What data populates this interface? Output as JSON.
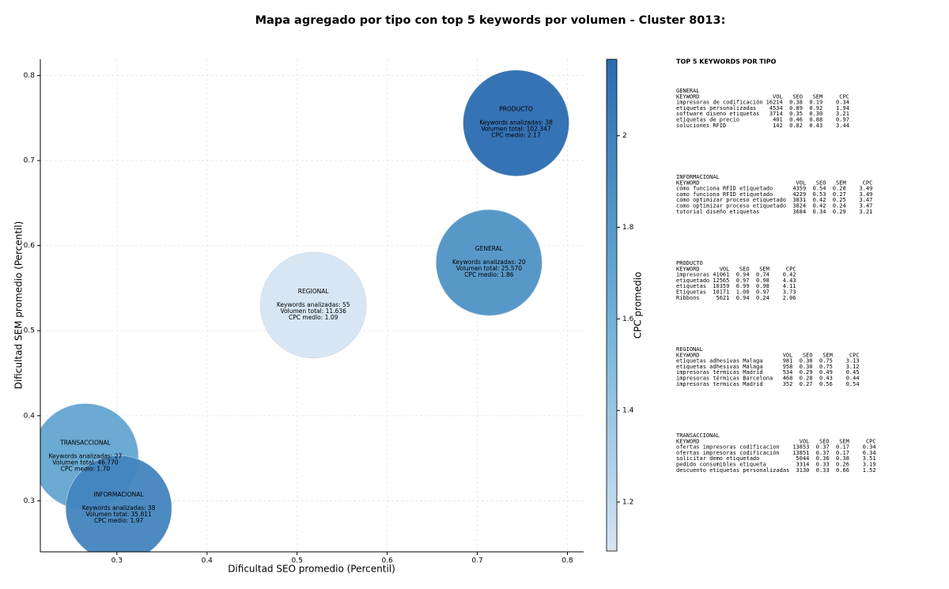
{
  "chart_data": {
    "type": "bubble",
    "title": "Mapa agregado por tipo con top 5 keywords por volumen - Cluster 8013:",
    "x_label": "Dificultad SEO promedio (Percentil)",
    "y_label": "Dificultad SEM promedio (Percentil)",
    "colorbar_label": "CPC promedio",
    "xlim": [
      0.215,
      0.818
    ],
    "ylim": [
      0.24,
      0.819
    ],
    "xticks": [
      0.3,
      0.4,
      0.5,
      0.6,
      0.7,
      0.8
    ],
    "yticks": [
      0.3,
      0.4,
      0.5,
      0.6,
      0.7,
      0.8
    ],
    "clim": [
      1.093,
      2.167
    ],
    "cticks": [
      1.2,
      1.4,
      1.6,
      1.8,
      2.0
    ],
    "colormap": [
      "#d6e5f3",
      "#6aaed6",
      "#2b6cb0"
    ],
    "grid": true,
    "points": [
      {
        "name": "PRODUCTO",
        "x": 0.743,
        "y": 0.744,
        "cpc": 2.17,
        "lines": [
          "Keywords analizadas: 38",
          "Volumen total: 102.347",
          "CPC medio: 2.17"
        ]
      },
      {
        "name": "GENERAL",
        "x": 0.713,
        "y": 0.58,
        "cpc": 1.86,
        "lines": [
          "Keywords analizadas: 20",
          "Volumen total: 25.570",
          "CPC medio: 1.86"
        ]
      },
      {
        "name": "REGIONAL",
        "x": 0.518,
        "y": 0.53,
        "cpc": 1.09,
        "lines": [
          "Keywords analizadas: 55",
          "Volumen total: 11.636",
          "CPC medio: 1.09"
        ]
      },
      {
        "name": "TRANSACCIONAL",
        "x": 0.265,
        "y": 0.352,
        "cpc": 1.7,
        "lines": [
          "Keywords analizadas: 27",
          "Volumen total: 46.770",
          "CPC medio: 1.70"
        ]
      },
      {
        "name": "INFORMACIONAL",
        "x": 0.302,
        "y": 0.291,
        "cpc": 1.97,
        "lines": [
          "Keywords analizadas: 38",
          "Volumen total: 35.811",
          "CPC medio: 1.97"
        ]
      }
    ]
  },
  "panel": {
    "title": "TOP 5 KEYWORDS POR TIPO",
    "groups": [
      {
        "title": "GENERAL",
        "columns": [
          "KEYWORD",
          "VOL",
          "SEO",
          "SEM",
          "CPC"
        ],
        "rows": [
          [
            "impresoras de codificación",
            "16214",
            "0.38",
            "0.19",
            "0.34"
          ],
          [
            "etiquetas personalizadas",
            "4534",
            "0.89",
            "0.92",
            "1.94"
          ],
          [
            "software diseno etiquetas",
            "3714",
            "0.35",
            "0.30",
            "3.21"
          ],
          [
            "etiquetas de precio",
            "401",
            "0.46",
            "0.88",
            "0.97"
          ],
          [
            "soluciones RFID",
            "142",
            "0.82",
            "0.43",
            "3.44"
          ]
        ]
      },
      {
        "title": "INFORMACIONAL",
        "columns": [
          "KEYWORD",
          "VOL",
          "SEO",
          "SEM",
          "CPC"
        ],
        "rows": [
          [
            "cómo funciona RFID etiquetado",
            "4359",
            "0.54",
            "0.28",
            "3.49"
          ],
          [
            "como funciona RFID etiquetado",
            "4229",
            "0.53",
            "0.27",
            "3.49"
          ],
          [
            "cómo optimizar proceso etiquetado",
            "3831",
            "0.42",
            "0.25",
            "3.47"
          ],
          [
            "como optimizar proceso etiquetado",
            "3824",
            "0.42",
            "0.24",
            "3.47"
          ],
          [
            "tutorial diseño etiquetas",
            "3684",
            "0.34",
            "0.29",
            "3.21"
          ]
        ]
      },
      {
        "title": "PRODUCTO",
        "columns": [
          "KEYWORD",
          "VOL",
          "SEO",
          "SEM",
          "CPC"
        ],
        "rows": [
          [
            "impresoras",
            "41061",
            "0.94",
            "0.74",
            "0.42"
          ],
          [
            "etiquetado",
            "12565",
            "0.97",
            "0.98",
            "4.43"
          ],
          [
            "etiquetas",
            "10359",
            "0.99",
            "0.98",
            "4.11"
          ],
          [
            "Etiquetas",
            "10171",
            "1.00",
            "0.97",
            "3.73"
          ],
          [
            "Ribbons",
            "5621",
            "0.94",
            "0.24",
            "2.06"
          ]
        ]
      },
      {
        "title": "REGIONAL",
        "columns": [
          "KEYWORD",
          "VOL",
          "SEO",
          "SEM",
          "CPC"
        ],
        "rows": [
          [
            "etiquetas adhesivas Malaga",
            "981",
            "0.30",
            "0.75",
            "3.13"
          ],
          [
            "etiquetas adhesivas Málaga",
            "958",
            "0.30",
            "0.75",
            "3.12"
          ],
          [
            "impresoras térmicas Madrid",
            "534",
            "0.29",
            "0.49",
            "0.45"
          ],
          [
            "impresoras térmicas Barcelona",
            "468",
            "0.28",
            "0.43",
            "0.44"
          ],
          [
            "impresoras termicas Madrid",
            "352",
            "0.27",
            "0.56",
            "0.54"
          ]
        ]
      },
      {
        "title": "TRANSACCIONAL",
        "columns": [
          "KEYWORD",
          "VOL",
          "SEO",
          "SEM",
          "CPC"
        ],
        "rows": [
          [
            "ofertas impresoras codificacion",
            "13853",
            "0.37",
            "0.17",
            "0.34"
          ],
          [
            "ofertas impresoras codificación",
            "13851",
            "0.37",
            "0.17",
            "0.34"
          ],
          [
            "solicitar demo etiquetado",
            "5044",
            "0.36",
            "0.38",
            "3.51"
          ],
          [
            "pedido consumibles etiqueta",
            "3314",
            "0.33",
            "0.26",
            "3.19"
          ],
          [
            "descuento etiquetas personalizadas",
            "3130",
            "0.33",
            "0.66",
            "1.52"
          ]
        ]
      }
    ]
  }
}
